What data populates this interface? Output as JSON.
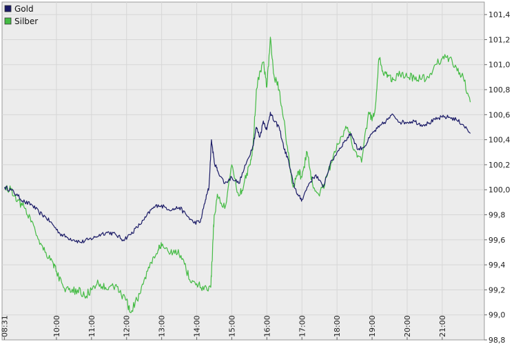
{
  "chart_data": {
    "type": "line",
    "title": "",
    "xlabel": "",
    "ylabel": "",
    "x_ticks": [
      "08:31",
      "10:00",
      "11:00",
      "12:00",
      "13:00",
      "14:00",
      "15:00",
      "16:00",
      "17:00",
      "18:00",
      "19:00",
      "20:00",
      "21:00"
    ],
    "x_tick_hours": [
      8.5167,
      10,
      11,
      12,
      13,
      14,
      15,
      16,
      17,
      18,
      19,
      20,
      21
    ],
    "xlim_hours": [
      8.45,
      22.2
    ],
    "y_ticks": [
      "98,8",
      "99,0",
      "99,2",
      "99,4",
      "99,6",
      "99,8",
      "100,0",
      "100,2",
      "100,4",
      "100,6",
      "100,8",
      "101,0",
      "101,2",
      "101,4"
    ],
    "y_tick_values": [
      98.8,
      99.0,
      99.2,
      99.4,
      99.6,
      99.8,
      100.0,
      100.2,
      100.4,
      100.6,
      100.8,
      101.0,
      101.2,
      101.4
    ],
    "ylim": [
      98.8,
      101.5
    ],
    "grid": true,
    "legend_position": "top-left",
    "series": [
      {
        "name": "Gold",
        "color": "#1a1a66",
        "x_hours": [
          8.52,
          8.7,
          8.9,
          9.1,
          9.3,
          9.5,
          9.7,
          9.9,
          10.1,
          10.3,
          10.5,
          10.7,
          10.9,
          11.1,
          11.3,
          11.5,
          11.7,
          11.9,
          12.1,
          12.3,
          12.5,
          12.7,
          12.9,
          13.1,
          13.3,
          13.5,
          13.7,
          13.9,
          14.1,
          14.25,
          14.35,
          14.42,
          14.5,
          14.6,
          14.8,
          15.0,
          15.2,
          15.4,
          15.6,
          15.7,
          15.8,
          15.9,
          16.0,
          16.1,
          16.2,
          16.35,
          16.5,
          16.6,
          16.75,
          16.9,
          17.0,
          17.2,
          17.4,
          17.6,
          17.8,
          18.0,
          18.2,
          18.4,
          18.6,
          18.8,
          19.0,
          19.2,
          19.4,
          19.6,
          19.8,
          20.0,
          20.2,
          20.4,
          20.6,
          20.8,
          21.0,
          21.2,
          21.4,
          21.6,
          21.8
        ],
        "values": [
          100.02,
          100.0,
          99.95,
          99.9,
          99.88,
          99.82,
          99.78,
          99.72,
          99.65,
          99.62,
          99.6,
          99.58,
          99.6,
          99.62,
          99.65,
          99.66,
          99.64,
          99.6,
          99.64,
          99.7,
          99.76,
          99.84,
          99.88,
          99.86,
          99.84,
          99.86,
          99.8,
          99.74,
          99.74,
          99.92,
          100.02,
          100.4,
          100.22,
          100.15,
          100.05,
          100.1,
          100.05,
          100.2,
          100.35,
          100.5,
          100.42,
          100.55,
          100.48,
          100.62,
          100.55,
          100.5,
          100.32,
          100.25,
          100.05,
          99.95,
          99.92,
          100.05,
          100.12,
          100.02,
          100.2,
          100.3,
          100.38,
          100.45,
          100.32,
          100.35,
          100.45,
          100.5,
          100.55,
          100.6,
          100.54,
          100.54,
          100.55,
          100.52,
          100.53,
          100.56,
          100.58,
          100.58,
          100.56,
          100.52,
          100.45
        ]
      },
      {
        "name": "Silber",
        "color": "#44bb44",
        "x_hours": [
          8.52,
          8.7,
          8.9,
          9.1,
          9.3,
          9.5,
          9.7,
          9.9,
          10.0,
          10.2,
          10.4,
          10.6,
          10.8,
          11.0,
          11.2,
          11.4,
          11.6,
          11.8,
          12.0,
          12.1,
          12.3,
          12.5,
          12.7,
          12.9,
          13.0,
          13.2,
          13.4,
          13.6,
          13.8,
          14.0,
          14.2,
          14.4,
          14.45,
          14.5,
          14.6,
          14.8,
          15.0,
          15.2,
          15.35,
          15.5,
          15.6,
          15.7,
          15.8,
          15.9,
          16.0,
          16.1,
          16.2,
          16.35,
          16.5,
          16.6,
          16.75,
          16.9,
          17.0,
          17.15,
          17.3,
          17.5,
          17.7,
          17.9,
          18.1,
          18.3,
          18.5,
          18.7,
          18.9,
          19.0,
          19.1,
          19.2,
          19.3,
          19.45,
          19.6,
          19.8,
          20.0,
          20.2,
          20.4,
          20.6,
          20.8,
          21.0,
          21.2,
          21.4,
          21.6,
          21.8
        ],
        "values": [
          100.02,
          100.0,
          99.92,
          99.85,
          99.75,
          99.6,
          99.5,
          99.42,
          99.35,
          99.22,
          99.18,
          99.2,
          99.15,
          99.2,
          99.25,
          99.22,
          99.25,
          99.18,
          99.12,
          99.02,
          99.12,
          99.28,
          99.42,
          99.52,
          99.55,
          99.5,
          99.52,
          99.45,
          99.28,
          99.25,
          99.2,
          99.22,
          99.5,
          99.8,
          99.95,
          99.85,
          100.2,
          99.95,
          100.05,
          100.2,
          100.32,
          100.8,
          100.95,
          101.02,
          100.82,
          101.22,
          100.92,
          100.8,
          100.55,
          100.3,
          100.02,
          100.15,
          100.1,
          100.3,
          100.05,
          99.95,
          100.1,
          100.28,
          100.42,
          100.5,
          100.32,
          100.22,
          100.62,
          100.55,
          100.68,
          101.05,
          100.95,
          100.92,
          100.88,
          100.92,
          100.9,
          100.9,
          100.88,
          100.9,
          101.0,
          101.05,
          101.05,
          100.98,
          100.9,
          100.7
        ]
      }
    ]
  }
}
